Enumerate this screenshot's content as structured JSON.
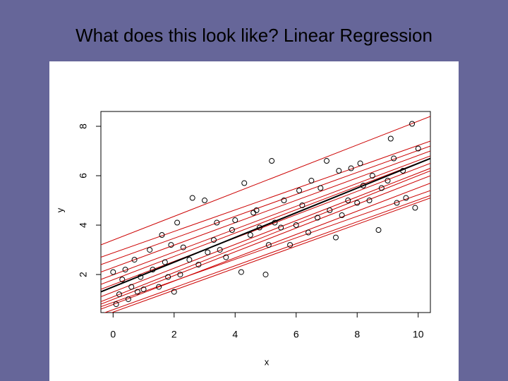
{
  "chart_data": {
    "type": "scatter",
    "title": "What does this look like?  Linear Regression",
    "xlabel": "x",
    "ylabel": "y",
    "xlim": [
      -0.4,
      10.4
    ],
    "ylim": [
      0.46,
      8.6
    ],
    "xticks": [
      0,
      2,
      4,
      6,
      8,
      10
    ],
    "yticks": [
      2,
      4,
      6,
      8
    ],
    "point_color": "#000000",
    "points": {
      "x": [
        0.0,
        0.1,
        0.2,
        0.3,
        0.4,
        0.5,
        0.6,
        0.7,
        0.8,
        0.9,
        1.0,
        1.2,
        1.3,
        1.5,
        1.6,
        1.7,
        1.8,
        1.9,
        2.0,
        2.1,
        2.2,
        2.3,
        2.5,
        2.6,
        2.8,
        3.0,
        3.1,
        3.3,
        3.4,
        3.5,
        3.7,
        3.9,
        4.0,
        4.2,
        4.3,
        4.5,
        4.6,
        4.7,
        4.8,
        5.0,
        5.1,
        5.2,
        5.3,
        5.5,
        5.6,
        5.8,
        6.0,
        6.1,
        6.2,
        6.4,
        6.5,
        6.7,
        6.8,
        7.0,
        7.1,
        7.3,
        7.4,
        7.5,
        7.7,
        7.8,
        8.0,
        8.1,
        8.2,
        8.4,
        8.5,
        8.7,
        8.8,
        9.0,
        9.1,
        9.2,
        9.3,
        9.5,
        9.6,
        9.8,
        9.9,
        10.0
      ],
      "y": [
        2.1,
        0.8,
        1.2,
        1.8,
        2.2,
        1.0,
        1.5,
        2.6,
        1.3,
        1.9,
        1.4,
        3.0,
        2.2,
        1.5,
        3.6,
        2.5,
        1.9,
        3.2,
        1.3,
        4.1,
        2.0,
        3.1,
        2.6,
        5.1,
        2.4,
        5.0,
        2.9,
        3.4,
        4.1,
        3.0,
        2.7,
        3.8,
        4.2,
        2.1,
        5.7,
        3.6,
        4.5,
        4.6,
        3.9,
        2.0,
        3.2,
        6.6,
        4.1,
        3.9,
        5.0,
        3.2,
        4.0,
        5.4,
        4.8,
        3.7,
        5.8,
        4.3,
        5.5,
        6.6,
        4.6,
        3.5,
        6.2,
        4.4,
        5.0,
        6.3,
        4.9,
        6.5,
        5.6,
        5.0,
        6.0,
        3.8,
        5.5,
        5.8,
        7.5,
        6.7,
        4.9,
        6.2,
        5.1,
        8.1,
        4.7,
        7.1
      ]
    },
    "lines": [
      {
        "color": "#cc0000",
        "x": [
          -0.4,
          10.4
        ],
        "y": [
          3.2,
          8.4
        ]
      },
      {
        "color": "#cc0000",
        "x": [
          -0.4,
          10.4
        ],
        "y": [
          2.7,
          7.4
        ]
      },
      {
        "color": "#cc0000",
        "x": [
          -0.4,
          10.4
        ],
        "y": [
          2.4,
          7.2
        ]
      },
      {
        "color": "#cc0000",
        "x": [
          -0.4,
          10.4
        ],
        "y": [
          2.1,
          7.0
        ]
      },
      {
        "color": "#cc0000",
        "x": [
          -0.4,
          10.4
        ],
        "y": [
          1.8,
          6.8
        ]
      },
      {
        "color": "#cc0000",
        "x": [
          -0.4,
          10.4
        ],
        "y": [
          1.6,
          6.7
        ]
      },
      {
        "color": "#cc0000",
        "x": [
          -0.4,
          10.4
        ],
        "y": [
          1.4,
          6.5
        ]
      },
      {
        "color": "#cc0000",
        "x": [
          -0.4,
          10.4
        ],
        "y": [
          1.1,
          6.3
        ]
      },
      {
        "color": "#cc0000",
        "x": [
          -0.4,
          10.4
        ],
        "y": [
          0.9,
          6.2
        ]
      },
      {
        "color": "#cc0000",
        "x": [
          -0.4,
          10.4
        ],
        "y": [
          0.8,
          6.0
        ]
      },
      {
        "color": "#cc0000",
        "x": [
          -0.4,
          10.4
        ],
        "y": [
          0.6,
          5.7
        ]
      },
      {
        "color": "#cc0000",
        "x": [
          -0.4,
          10.4
        ],
        "y": [
          0.4,
          5.2
        ]
      },
      {
        "color": "#cc0000",
        "x": [
          -0.4,
          10.4
        ],
        "y": [
          0.3,
          5.1
        ]
      },
      {
        "color": "#cc0000",
        "x": [
          -0.4,
          10.4
        ],
        "y": [
          0.7,
          5.4
        ]
      },
      {
        "color": "#000000",
        "x": [
          -0.4,
          10.4
        ],
        "y": [
          1.3,
          6.7
        ]
      }
    ]
  }
}
